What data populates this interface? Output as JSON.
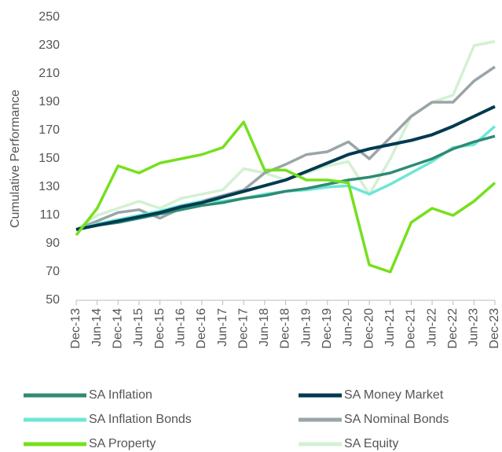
{
  "chart_data": {
    "type": "line",
    "y_label": "Cumulative Performance",
    "categories": [
      "Dec-13",
      "Jun-14",
      "Dec-14",
      "Jun-15",
      "Dec-15",
      "Jun-16",
      "Dec-16",
      "Jun-17",
      "Dec-17",
      "Jun-18",
      "Dec-18",
      "Jun-19",
      "Dec-19",
      "Jun-20",
      "Dec-20",
      "Jun-21",
      "Dec-21",
      "Jun-22",
      "Dec-22",
      "Jun-23",
      "Dec-23"
    ],
    "ylim": [
      50,
      250
    ],
    "yticks": [
      50,
      70,
      90,
      110,
      130,
      150,
      170,
      190,
      210,
      230,
      250
    ],
    "series": [
      {
        "name": "SA Inflation",
        "color": "#2e8b73",
        "values": [
          100,
          103,
          105,
          108,
          111,
          114,
          117,
          119,
          122,
          124,
          127,
          129,
          132,
          135,
          137,
          140,
          145,
          150,
          157,
          162,
          166
        ]
      },
      {
        "name": "SA Money Market",
        "color": "#003a4f",
        "values": [
          100,
          103,
          106,
          109,
          112,
          116,
          119,
          123,
          127,
          131,
          135,
          141,
          147,
          153,
          157,
          160,
          163,
          167,
          173,
          180,
          187
        ]
      },
      {
        "name": "SA Inflation Bonds",
        "color": "#6ee6d6",
        "values": [
          100,
          104,
          107,
          110,
          113,
          117,
          120,
          120,
          122,
          125,
          127,
          128,
          130,
          131,
          125,
          132,
          140,
          148,
          158,
          160,
          173
        ]
      },
      {
        "name": "SA Nominal Bonds",
        "color": "#9aa5a8",
        "values": [
          100,
          106,
          112,
          114,
          108,
          115,
          120,
          124,
          128,
          140,
          146,
          153,
          155,
          162,
          150,
          165,
          180,
          190,
          190,
          205,
          215
        ]
      },
      {
        "name": "SA Property",
        "color": "#75e01d",
        "values": [
          96,
          115,
          145,
          140,
          147,
          150,
          153,
          158,
          176,
          142,
          142,
          135,
          135,
          133,
          75,
          70,
          105,
          115,
          110,
          120,
          133
        ]
      },
      {
        "name": "SA Equity",
        "color": "#d4f0d4",
        "values": [
          100,
          110,
          115,
          120,
          115,
          122,
          125,
          128,
          143,
          140,
          135,
          140,
          145,
          148,
          125,
          150,
          180,
          190,
          195,
          230,
          233
        ]
      }
    ]
  }
}
